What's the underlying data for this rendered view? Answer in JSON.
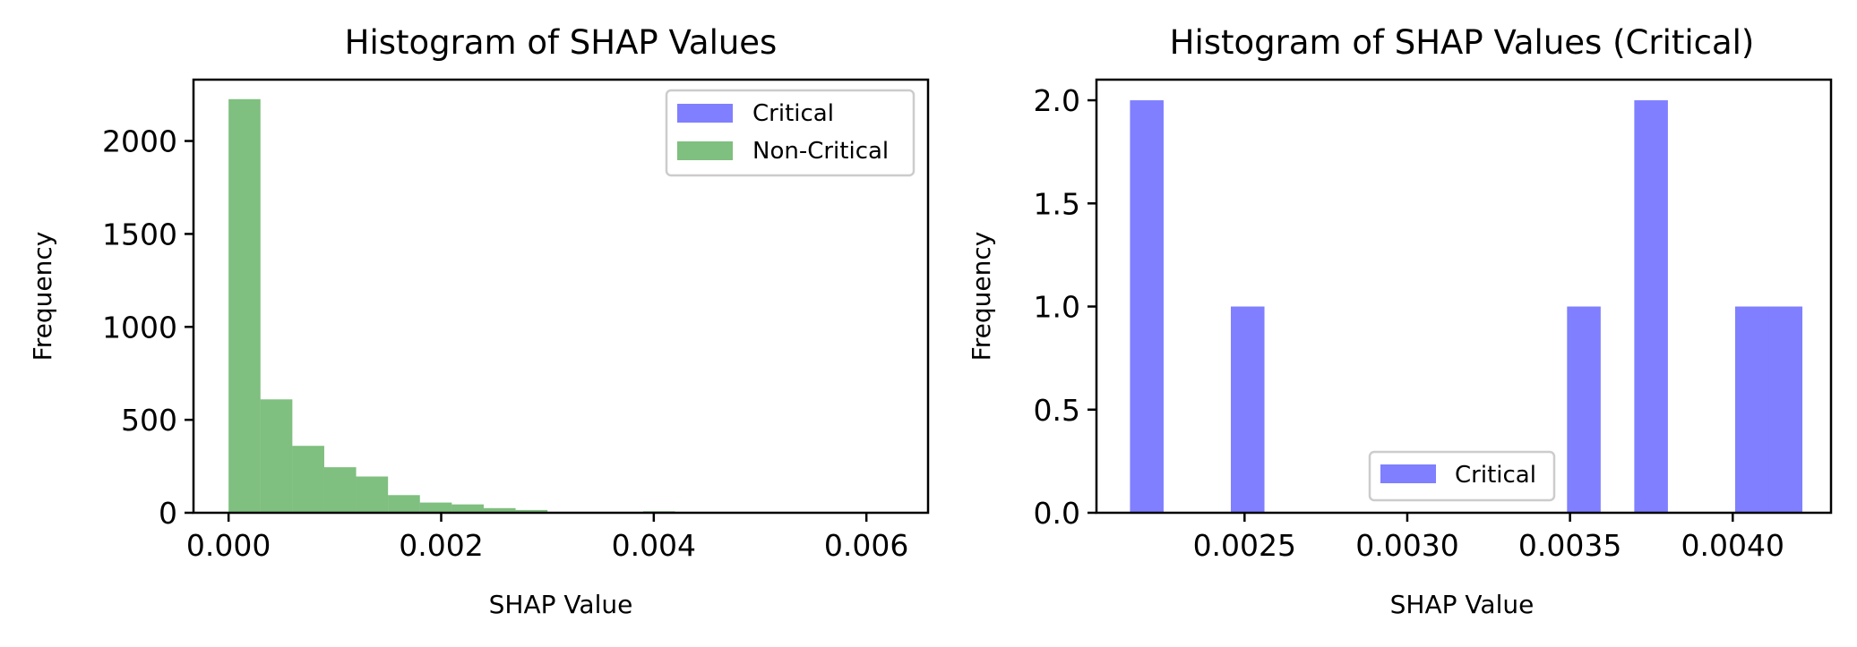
{
  "chart_data": [
    {
      "type": "bar",
      "title": "Histogram of SHAP Values",
      "xlabel": "SHAP Value",
      "ylabel": "Frequency",
      "xlim": [
        -0.00033,
        0.00658
      ],
      "ylim": [
        0,
        2330
      ],
      "xticks": [
        0.0,
        0.002,
        0.004,
        0.006
      ],
      "xtick_labels": [
        "0.000",
        "0.002",
        "0.004",
        "0.006"
      ],
      "yticks": [
        0,
        500,
        1000,
        1500,
        2000
      ],
      "ytick_labels": [
        "0",
        "500",
        "1000",
        "1500",
        "2000"
      ],
      "grid": false,
      "legend_placement": "upper right",
      "legend": [
        {
          "label": "Critical",
          "color": "#0000ff",
          "alpha": 0.5
        },
        {
          "label": "Non-Critical",
          "color": "#008000",
          "alpha": 0.5
        }
      ],
      "series": [
        {
          "name": "Non-Critical",
          "color": "#008000",
          "alpha": 0.5,
          "bin_edges": [
            0.0,
            0.0003,
            0.0006,
            0.0009,
            0.0012,
            0.0015,
            0.0018,
            0.0021,
            0.0024,
            0.0027,
            0.003,
            0.0033,
            0.0036,
            0.0039,
            0.0042,
            0.0045,
            0.0048,
            0.0051,
            0.0054,
            0.0057,
            0.006,
            0.0062
          ],
          "counts": [
            2225,
            610,
            360,
            245,
            195,
            95,
            55,
            45,
            25,
            15,
            5,
            4,
            3,
            8,
            2,
            1,
            1,
            1,
            1,
            1,
            1
          ]
        },
        {
          "name": "Critical",
          "color": "#0000ff",
          "alpha": 0.5,
          "bin_edges": [],
          "counts": []
        }
      ]
    },
    {
      "type": "bar",
      "title": "Histogram of SHAP Values (Critical)",
      "xlabel": "SHAP Value",
      "ylabel": "Frequency",
      "xlim": [
        0.002045,
        0.004302
      ],
      "ylim": [
        0,
        2.1
      ],
      "xticks": [
        0.0025,
        0.003,
        0.0035,
        0.004
      ],
      "xtick_labels": [
        "0.0025",
        "0.0030",
        "0.0035",
        "0.0040"
      ],
      "yticks": [
        0.0,
        0.5,
        1.0,
        1.5,
        2.0
      ],
      "ytick_labels": [
        "0.0",
        "0.5",
        "1.0",
        "1.5",
        "2.0"
      ],
      "grid": false,
      "legend_placement": "lower center",
      "legend": [
        {
          "label": "Critical",
          "color": "#0000ff",
          "alpha": 0.5
        }
      ],
      "series": [
        {
          "name": "Critical",
          "color": "#0000ff",
          "alpha": 0.5,
          "bin_edges": [
            0.002148,
            0.0022513,
            0.0023546,
            0.0024579,
            0.0025612,
            0.0026645,
            0.0027678,
            0.0028711,
            0.0029744,
            0.0030777,
            0.003181,
            0.0032843,
            0.0033876,
            0.0034909,
            0.0035942,
            0.0036975,
            0.0038008,
            0.0039041,
            0.0040074,
            0.0041107,
            0.004214
          ],
          "counts": [
            2,
            0,
            0,
            1,
            0,
            0,
            0,
            0,
            0,
            0,
            0,
            0,
            0,
            1,
            0,
            2,
            0,
            0,
            1,
            1
          ]
        }
      ]
    }
  ]
}
